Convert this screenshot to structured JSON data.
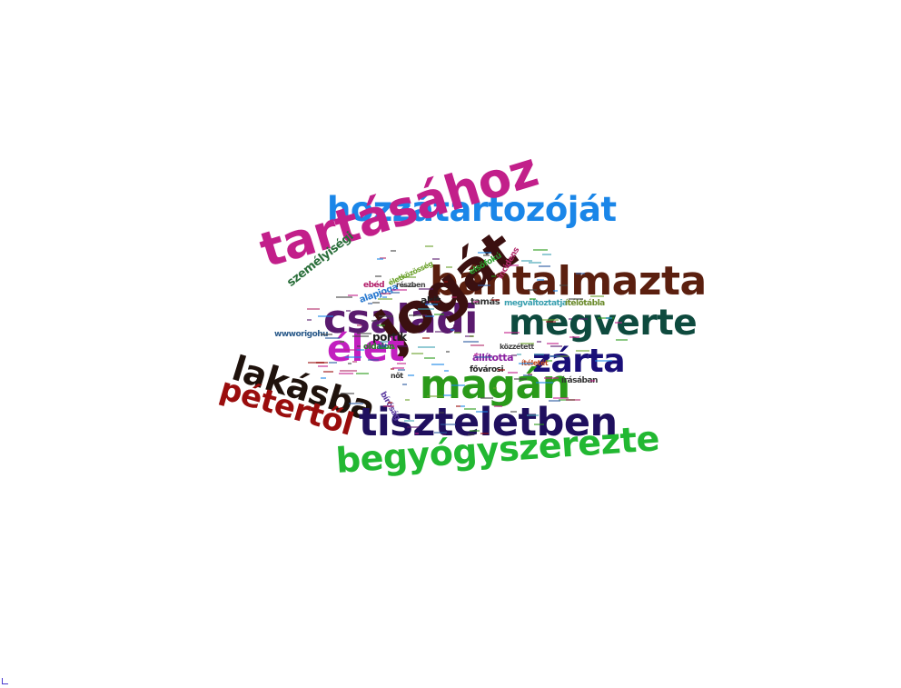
{
  "words": [
    {
      "text": "hozzátartozóját",
      "color": "#1a86e8"
    },
    {
      "text": "tartásához",
      "color": "#c21f8a"
    },
    {
      "text": "bántalmazta",
      "color": "#5b1f0f"
    },
    {
      "text": "családi",
      "color": "#5a1a6e"
    },
    {
      "text": "megverte",
      "color": "#0e4a3e"
    },
    {
      "text": "jogát",
      "color": "#3b1010"
    },
    {
      "text": "élet",
      "color": "#c21fbf"
    },
    {
      "text": "zárta",
      "color": "#1a0f78"
    },
    {
      "text": "lakásba",
      "color": "#1f120c"
    },
    {
      "text": "magán",
      "color": "#2a9a1a"
    },
    {
      "text": "pétertől",
      "color": "#9a0d0d"
    },
    {
      "text": "tiszteletben",
      "color": "#1f0f5e"
    },
    {
      "text": "begyógyszerezte",
      "color": "#22b832"
    },
    {
      "text": "személyiségi",
      "color": "#2a6e3a"
    },
    {
      "text": "ebéd",
      "color": "#b21f6a"
    },
    {
      "text": "alapjoga",
      "color": "#2a7ad0"
    },
    {
      "text": "akit",
      "color": "#222222"
    },
    {
      "text": "wwworigohu",
      "color": "#2a5a8a"
    },
    {
      "text": "portik",
      "color": "#222222"
    },
    {
      "text": "tamás",
      "color": "#333333"
    },
    {
      "text": "megváltoztatja",
      "color": "#3aa0b0"
    },
    {
      "text": "állította",
      "color": "#8a1fa0"
    },
    {
      "text": "közzétett",
      "color": "#444444"
    },
    {
      "text": "fővárosi",
      "color": "#222222"
    },
    {
      "text": "ítéletét",
      "color": "#c24a1f"
    },
    {
      "text": "írásában",
      "color": "#333333"
    },
    {
      "text": "oldalon",
      "color": "#2a7a2a"
    },
    {
      "text": "bíróság",
      "color": "#5a3aa0"
    },
    {
      "text": "elsőfokú",
      "color": "#2aa02a"
    },
    {
      "text": "incidens",
      "color": "#b22a6a"
    },
    {
      "text": "életközösség",
      "color": "#6aa02a"
    },
    {
      "text": "részben",
      "color": "#444444"
    },
    {
      "text": "ítélőtábla",
      "color": "#6a8a2a"
    },
    {
      "text": "nőt",
      "color": "#333333"
    },
    {
      "text": "lát",
      "color": "#2a5aa0"
    }
  ]
}
